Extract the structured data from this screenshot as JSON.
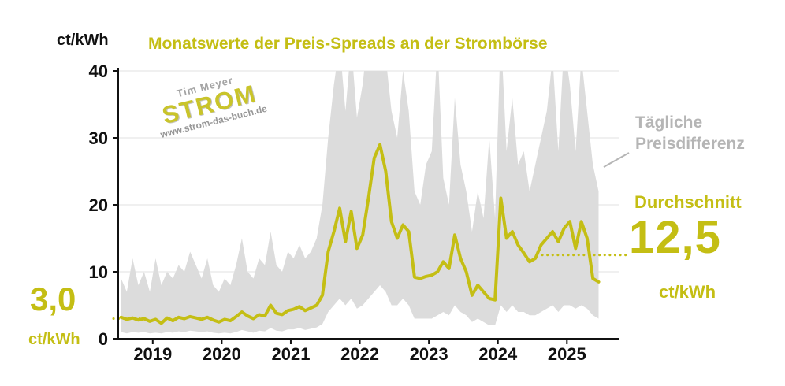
{
  "header": {
    "y_unit_label": "ct/kWh",
    "title": "Monatswerte der Preis-Spreads an der Strombörse"
  },
  "watermark": {
    "author": "Tim Meyer",
    "brand": "STROM",
    "url": "www.strom-das-buch.de"
  },
  "legend": {
    "band_label_line1": "Tägliche",
    "band_label_line2": "Preisdifferenz",
    "average_label": "Durchschnitt",
    "average_value": "12,5",
    "average_unit": "ct/kWh",
    "start_value": "3,0",
    "start_unit": "ct/kWh"
  },
  "colors": {
    "accent": "#c4be14",
    "band": "#dcdcdc",
    "gray_text": "#b5b5b5",
    "axis": "#111111",
    "grid": "#ececec"
  },
  "chart_data": {
    "type": "line",
    "title": "Monatswerte der Preis-Spreads an der Strombörse",
    "ylabel": "ct/kWh",
    "ylim": [
      0,
      40
    ],
    "y_ticks": [
      0,
      10,
      20,
      30,
      40
    ],
    "x_tick_years": [
      2019,
      2020,
      2021,
      2022,
      2023,
      2024,
      2025
    ],
    "x_start": "2018-07",
    "x_step_months": 1,
    "series": [
      {
        "name": "Monatswert Preis-Spread",
        "color": "#c4be14",
        "values": [
          3.2,
          2.9,
          3.1,
          2.8,
          3.0,
          2.6,
          2.9,
          2.3,
          3.1,
          2.7,
          3.2,
          3.0,
          3.3,
          3.1,
          2.9,
          3.2,
          2.8,
          2.5,
          2.9,
          2.7,
          3.3,
          4.0,
          3.4,
          3.0,
          3.6,
          3.4,
          5.0,
          3.8,
          3.6,
          4.2,
          4.4,
          4.8,
          4.2,
          4.6,
          5.0,
          6.5,
          13.0,
          16.0,
          19.5,
          14.5,
          19.0,
          13.5,
          15.5,
          21.0,
          27.0,
          29.0,
          25.0,
          17.5,
          15.0,
          17.0,
          16.0,
          9.2,
          9.0,
          9.3,
          9.5,
          10.0,
          11.5,
          10.5,
          15.5,
          12.0,
          10.0,
          6.5,
          8.0,
          7.0,
          6.0,
          5.8,
          21.0,
          15.0,
          16.0,
          14.0,
          12.8,
          11.5,
          12.0,
          14.0,
          15.0,
          16.0,
          14.5,
          16.5,
          17.5,
          13.5,
          17.5,
          15.0,
          9.0,
          8.5
        ]
      }
    ],
    "band": {
      "name": "Tägliche Preisdifferenz",
      "color": "#dcdcdc",
      "low": [
        1.0,
        0.8,
        1.0,
        0.9,
        1.0,
        0.8,
        0.9,
        0.8,
        1.0,
        0.9,
        1.1,
        1.0,
        1.2,
        1.1,
        1.0,
        1.1,
        0.9,
        0.8,
        0.9,
        0.8,
        1.0,
        1.3,
        1.1,
        0.9,
        1.2,
        1.1,
        1.6,
        1.2,
        1.1,
        1.4,
        1.4,
        1.6,
        1.3,
        1.5,
        1.7,
        2.2,
        4.0,
        5.0,
        6.0,
        5.0,
        6.0,
        4.5,
        5.0,
        6.0,
        7.0,
        8.0,
        7.0,
        5.0,
        5.0,
        6.0,
        5.0,
        3.0,
        3.0,
        3.0,
        3.0,
        3.5,
        4.0,
        3.5,
        5.0,
        4.0,
        3.5,
        2.5,
        3.0,
        2.5,
        2.0,
        2.0,
        5.0,
        4.0,
        5.0,
        4.0,
        4.0,
        3.5,
        3.5,
        4.0,
        4.5,
        5.0,
        4.0,
        5.0,
        5.0,
        4.5,
        5.0,
        4.5,
        3.5,
        3.0
      ],
      "high": [
        9,
        7,
        12,
        8,
        10,
        7,
        12,
        8,
        10,
        9,
        11,
        10,
        13,
        11,
        9,
        12,
        8,
        7,
        9,
        8,
        11,
        15,
        10,
        9,
        12,
        11,
        16,
        11,
        10,
        13,
        12,
        14,
        12,
        13,
        15,
        20,
        30,
        38,
        44,
        34,
        44,
        33,
        38,
        46,
        44,
        47,
        42,
        34,
        30,
        40,
        34,
        22,
        20,
        26,
        28,
        44,
        24,
        20,
        36,
        26,
        22,
        16,
        22,
        18,
        30,
        18,
        46,
        28,
        36,
        26,
        28,
        22,
        26,
        30,
        34,
        42,
        28,
        44,
        38,
        28,
        42,
        34,
        26,
        22
      ]
    },
    "annotations": {
      "start_value": 3.0,
      "average_value": 12.5
    }
  }
}
